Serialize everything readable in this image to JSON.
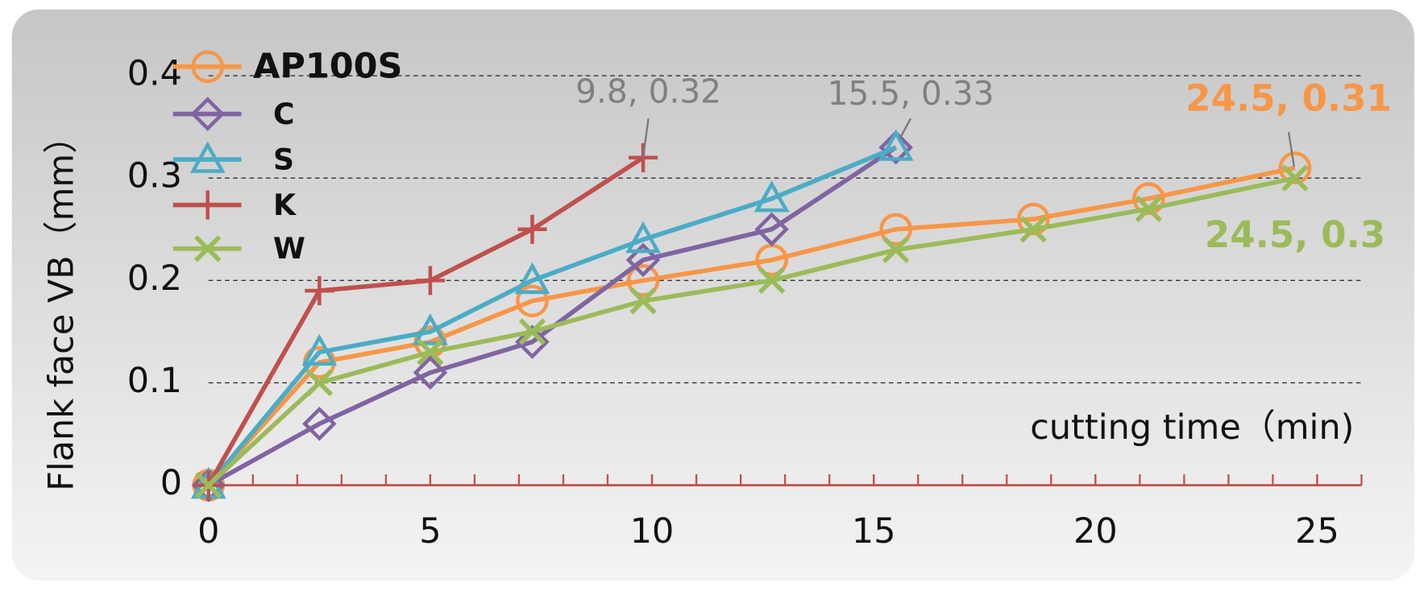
{
  "chart_data": {
    "type": "line",
    "ylabel": "Flank face  VB（mm）",
    "xlabel": "cutting time（min)",
    "x": [
      0,
      2.5,
      5,
      7.3,
      9.8,
      12.7,
      15.5,
      18.6,
      21.2,
      24.5
    ],
    "series": [
      {
        "name": "AP100S",
        "color": "#f79646",
        "marker": "circle",
        "values": [
          0,
          0.12,
          0.14,
          0.18,
          0.2,
          0.22,
          0.25,
          0.26,
          0.28,
          0.31
        ]
      },
      {
        "name": "C",
        "color": "#8064a2",
        "marker": "diamond",
        "values": [
          0,
          0.06,
          0.11,
          0.14,
          0.22,
          0.25,
          0.33,
          null,
          null,
          null
        ]
      },
      {
        "name": "S",
        "color": "#4bacc6",
        "marker": "triangle",
        "values": [
          0,
          0.13,
          0.15,
          0.2,
          0.24,
          0.28,
          0.33,
          null,
          null,
          null
        ]
      },
      {
        "name": "K",
        "color": "#c0504d",
        "marker": "plus",
        "values": [
          0,
          0.19,
          0.2,
          0.25,
          0.32,
          null,
          null,
          null,
          null,
          null
        ]
      },
      {
        "name": "W",
        "color": "#9bbb59",
        "marker": "cross",
        "values": [
          0,
          0.1,
          0.13,
          0.15,
          0.18,
          0.2,
          0.23,
          0.25,
          0.27,
          0.3
        ]
      }
    ],
    "annotations": [
      {
        "text": "9.8, 0.32",
        "color": "#808080"
      },
      {
        "text": "15.5, 0.33",
        "color": "#808080"
      },
      {
        "text": "24.5, 0.31",
        "color": "#f79646"
      },
      {
        "text": "24.5, 0.3",
        "color": "#9bbb59"
      }
    ],
    "xlim": [
      0,
      26
    ],
    "ylim": [
      0,
      0.4
    ],
    "xticks": [
      0,
      5,
      10,
      15,
      20,
      25
    ],
    "x_minor_ticks": [
      1,
      2,
      3,
      4,
      5,
      6,
      7,
      8,
      9,
      10,
      11,
      12,
      13,
      14,
      15,
      16,
      17,
      18,
      19,
      20,
      21,
      22,
      23,
      24,
      25,
      26
    ],
    "yticks": [
      0,
      0.1,
      0.2,
      0.3,
      0.4
    ],
    "grid": true,
    "legend": "upper left"
  }
}
